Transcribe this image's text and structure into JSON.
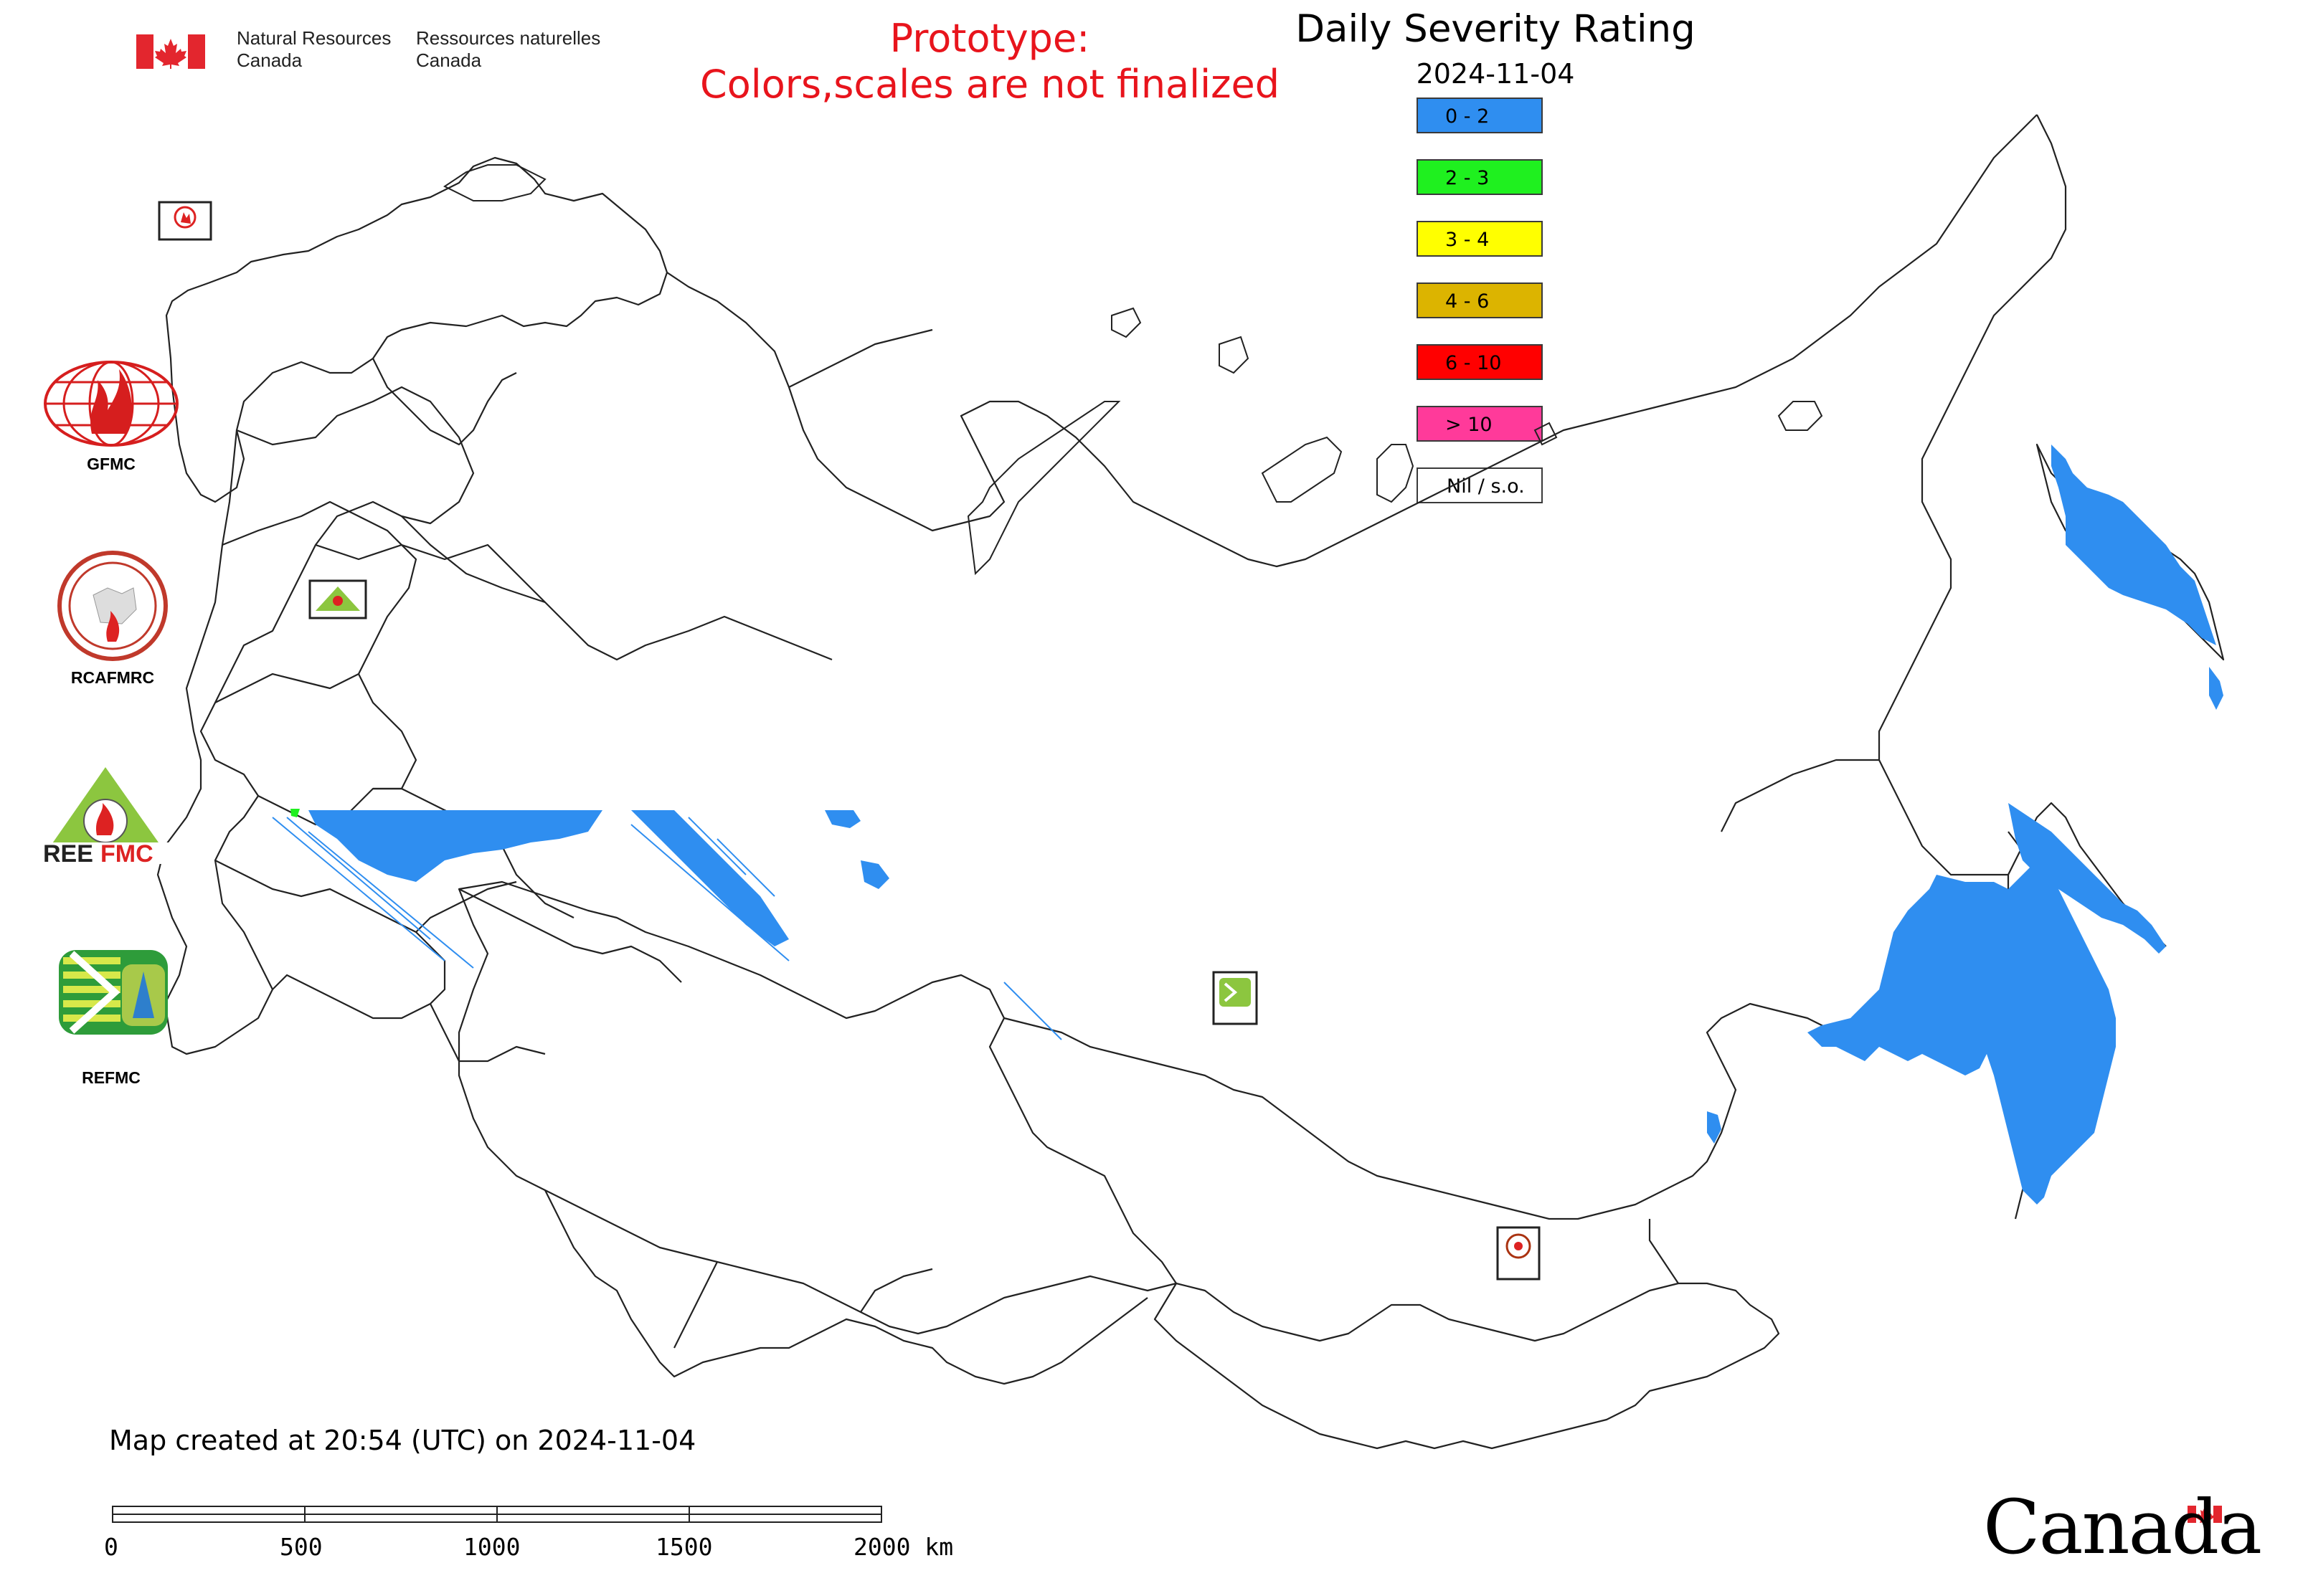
{
  "header": {
    "nrcan_en_line1": "Natural Resources",
    "nrcan_en_line2": "Canada",
    "nrcan_fr_line1": "Ressources naturelles",
    "nrcan_fr_line2": "Canada",
    "prototype_line1": "Prototype:",
    "prototype_line2": "Colors,scales are not finalized"
  },
  "map": {
    "title": "Daily Severity Rating",
    "date": "2024-11-04",
    "created_note": "Map created at 20:54 (UTC) on 2024-11-04"
  },
  "legend": [
    {
      "label": "0 - 2",
      "color": "#2f8ef0"
    },
    {
      "label": "2 - 3",
      "color": "#1ff01f"
    },
    {
      "label": "3 - 4",
      "color": "#ffff00"
    },
    {
      "label": "4 - 6",
      "color": "#dcb400"
    },
    {
      "label": "6 - 10",
      "color": "#ff0000"
    },
    {
      "label": "> 10",
      "color": "#ff3a9a"
    },
    {
      "label": "Nil / s.o.",
      "color": "#ffffff"
    }
  ],
  "partners": [
    {
      "name": "GFMC"
    },
    {
      "name": "RCAFMRC"
    },
    {
      "name": "REEFMC"
    },
    {
      "name": "REFMC"
    }
  ],
  "scale_bar": {
    "ticks": [
      "0",
      "500",
      "1000",
      "1500",
      "2000 km"
    ]
  },
  "wordmark": "Canada",
  "colors": {
    "prototype_text": "#e8141c",
    "fire_low": "#2f8ef0",
    "flag_red": "#e3262e"
  }
}
